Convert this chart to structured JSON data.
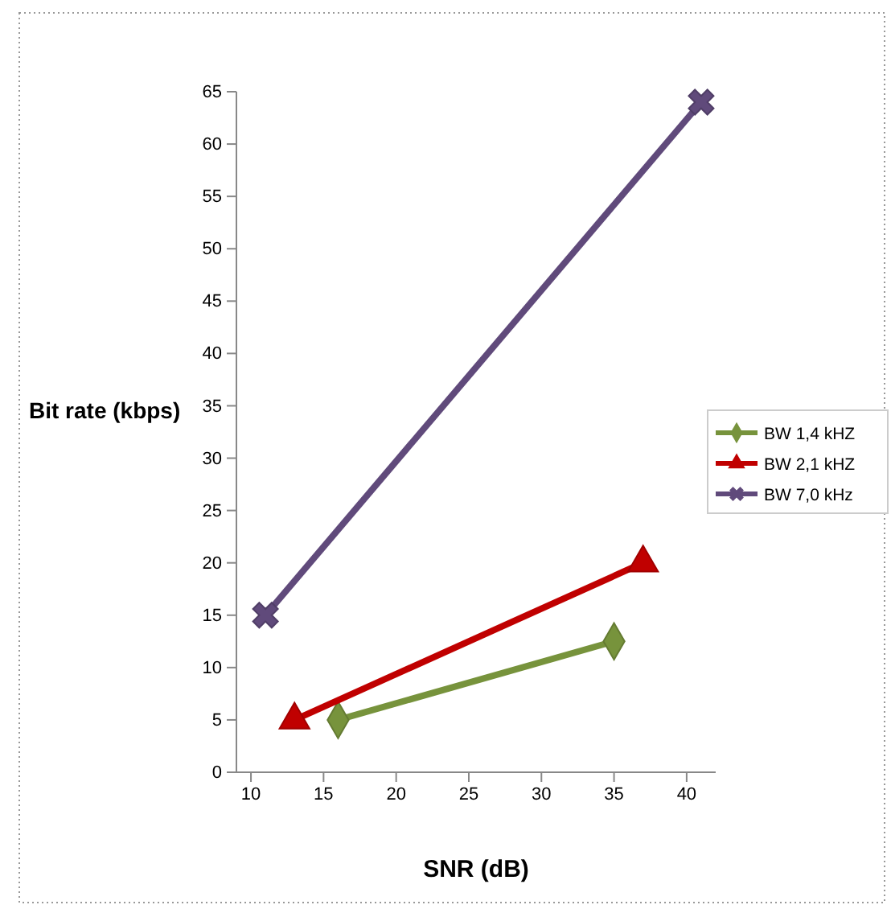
{
  "chart_data": {
    "type": "line",
    "xlabel": "SNR (dB)",
    "ylabel": "Bit rate (kbps)",
    "xlim": [
      9,
      42
    ],
    "xticks": [
      10,
      15,
      20,
      25,
      30,
      35,
      40
    ],
    "ylim": [
      0,
      65
    ],
    "yticks": [
      0,
      5,
      10,
      15,
      20,
      25,
      30,
      35,
      40,
      45,
      50,
      55,
      60,
      65
    ],
    "grid": false,
    "legend": "right",
    "series": [
      {
        "name": "BW 1,4 kHZ",
        "color": "#77933c",
        "marker": "diamond",
        "x": [
          16,
          35
        ],
        "values": [
          5,
          12.5
        ]
      },
      {
        "name": "BW 2,1 kHZ",
        "color": "#c00000",
        "marker": "triangle",
        "x": [
          13,
          37
        ],
        "values": [
          5,
          20
        ]
      },
      {
        "name": "BW 7,0 kHz",
        "color": "#604a7b",
        "marker": "cross",
        "x": [
          11,
          41
        ],
        "values": [
          15,
          64
        ]
      }
    ]
  }
}
